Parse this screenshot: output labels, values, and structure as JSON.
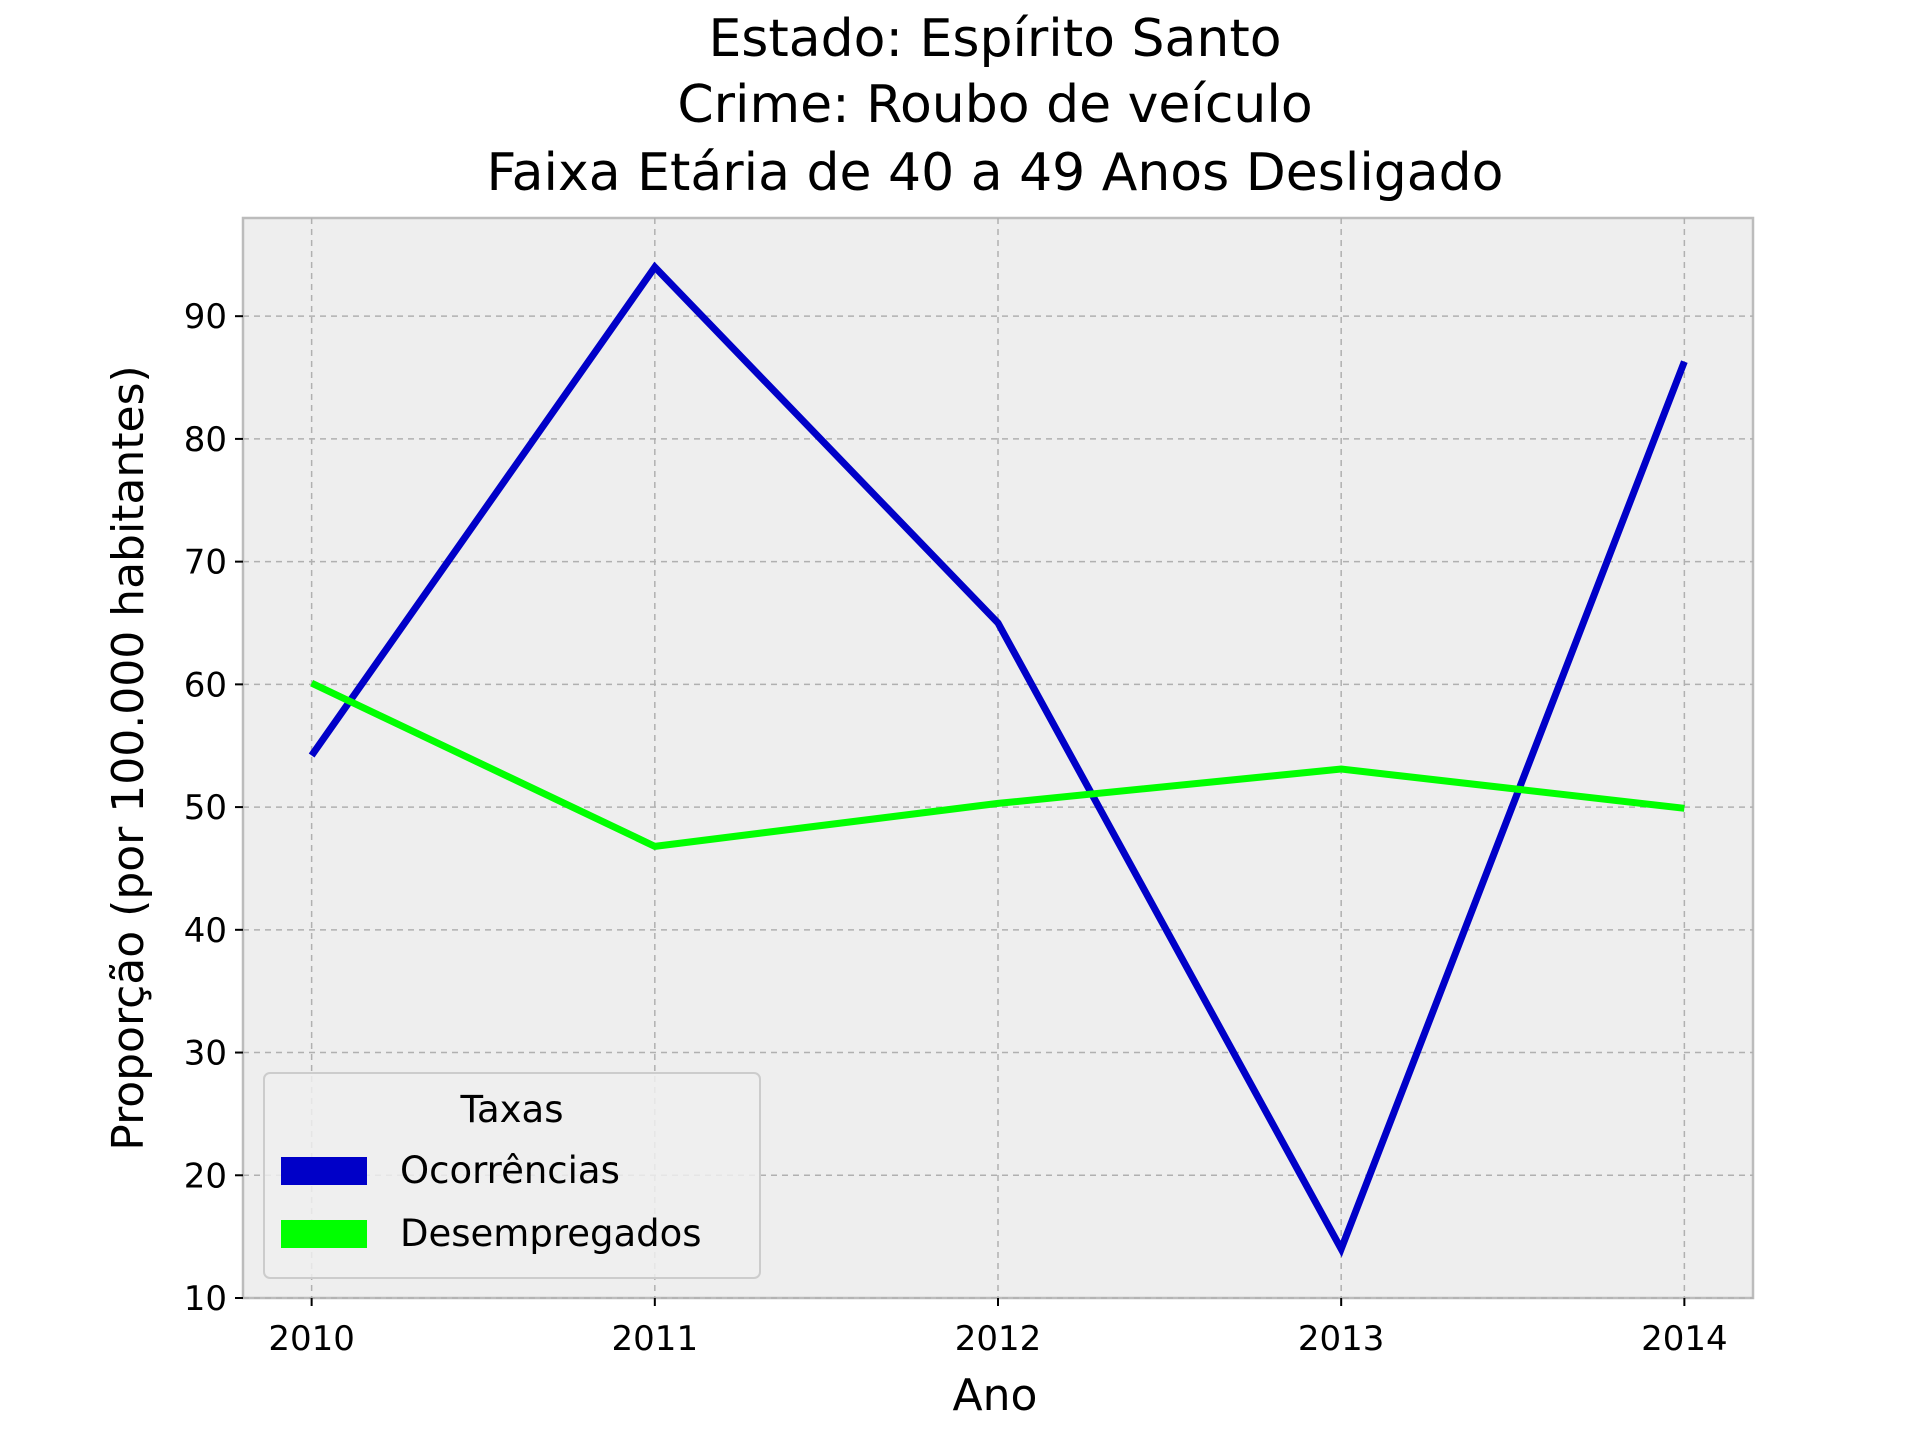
{
  "chart_data": {
    "type": "line",
    "title_lines": [
      "Estado: Espírito Santo",
      "Crime: Roubo de veículo",
      "Faixa Etária de 40 a 49 Anos   Desligado"
    ],
    "xlabel": "Ano",
    "ylabel": "Proporção (por 100.000 habitantes)",
    "x": [
      "2010",
      "2011",
      "2012",
      "2013",
      "2014"
    ],
    "xlim": [
      2009.8,
      2014.2
    ],
    "ylim": [
      10,
      98
    ],
    "yticks": [
      "10",
      "20",
      "30",
      "40",
      "50",
      "60",
      "70",
      "80",
      "90"
    ],
    "grid": true,
    "legend": {
      "title": "Taxas",
      "placement": "lower-left"
    },
    "series": [
      {
        "name": "Ocorrências",
        "color": "#0000c8",
        "values": [
          54.2,
          94.0,
          65.0,
          14.0,
          86.3
        ]
      },
      {
        "name": "Desempregados",
        "color": "#00ff00",
        "values": [
          60.1,
          46.8,
          50.3,
          53.1,
          49.9
        ]
      }
    ]
  }
}
